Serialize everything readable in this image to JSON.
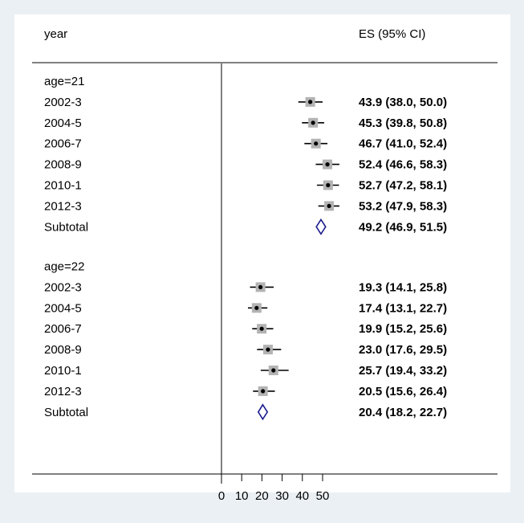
{
  "chart_data": {
    "type": "forest",
    "columns": {
      "left": "year",
      "right": "ES (95% CI)"
    },
    "xaxis": {
      "ticks": [
        0,
        10,
        20,
        30,
        40,
        50
      ],
      "range": [
        0,
        70
      ]
    },
    "groups": [
      {
        "label": "age=21",
        "rows": [
          {
            "label": "2002-3",
            "es": 43.9,
            "lo": 38.0,
            "hi": 50.0,
            "text": "43.9 (38.0, 50.0)"
          },
          {
            "label": "2004-5",
            "es": 45.3,
            "lo": 39.8,
            "hi": 50.8,
            "text": "45.3 (39.8, 50.8)"
          },
          {
            "label": "2006-7",
            "es": 46.7,
            "lo": 41.0,
            "hi": 52.4,
            "text": "46.7 (41.0, 52.4)"
          },
          {
            "label": "2008-9",
            "es": 52.4,
            "lo": 46.6,
            "hi": 58.3,
            "text": "52.4 (46.6, 58.3)"
          },
          {
            "label": "2010-1",
            "es": 52.7,
            "lo": 47.2,
            "hi": 58.1,
            "text": "52.7 (47.2, 58.1)"
          },
          {
            "label": "2012-3",
            "es": 53.2,
            "lo": 47.9,
            "hi": 58.3,
            "text": "53.2 (47.9, 58.3)"
          }
        ],
        "subtotal": {
          "label": "Subtotal",
          "es": 49.2,
          "lo": 46.9,
          "hi": 51.5,
          "text": "49.2 (46.9, 51.5)"
        }
      },
      {
        "label": "age=22",
        "rows": [
          {
            "label": "2002-3",
            "es": 19.3,
            "lo": 14.1,
            "hi": 25.8,
            "text": "19.3 (14.1, 25.8)"
          },
          {
            "label": "2004-5",
            "es": 17.4,
            "lo": 13.1,
            "hi": 22.7,
            "text": "17.4 (13.1, 22.7)"
          },
          {
            "label": "2006-7",
            "es": 19.9,
            "lo": 15.2,
            "hi": 25.6,
            "text": "19.9 (15.2, 25.6)"
          },
          {
            "label": "2008-9",
            "es": 23.0,
            "lo": 17.6,
            "hi": 29.5,
            "text": "23.0 (17.6, 29.5)"
          },
          {
            "label": "2010-1",
            "es": 25.7,
            "lo": 19.4,
            "hi": 33.2,
            "text": "25.7 (19.4, 33.2)"
          },
          {
            "label": "2012-3",
            "es": 20.5,
            "lo": 15.6,
            "hi": 26.4,
            "text": "20.5 (15.6, 26.4)"
          }
        ],
        "subtotal": {
          "label": "Subtotal",
          "es": 20.4,
          "lo": 18.2,
          "hi": 22.7,
          "text": "20.4 (18.2, 22.7)"
        }
      }
    ],
    "colors": {
      "background": "#ebf0f4",
      "panel": "#ffffff",
      "line": "#000000",
      "marker_box": "#b3b3b3",
      "diamond": "#1a1a8c"
    }
  }
}
